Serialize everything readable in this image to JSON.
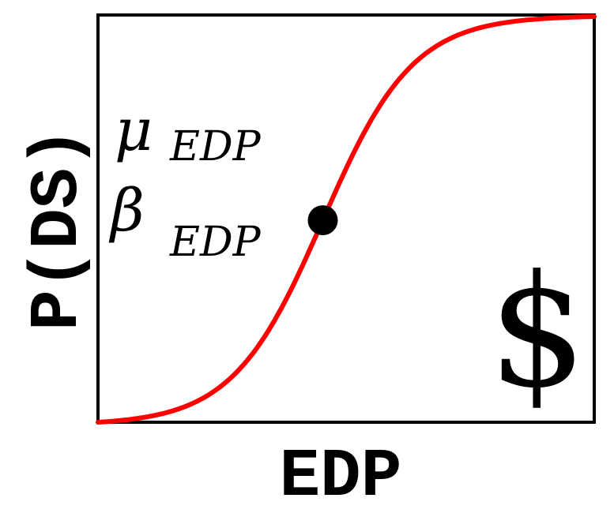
{
  "chart_data": {
    "type": "line",
    "title": "",
    "xlabel": "EDP",
    "ylabel": "P(DS)",
    "grid": false,
    "ylim": [
      0,
      1
    ],
    "series": [
      {
        "curve": "lognormal-cdf",
        "color": "#ff0000"
      }
    ],
    "marker": {
      "color": "#000000"
    }
  },
  "annotations": {
    "mu_symbol": "μ",
    "mu_subscript": "EDP",
    "beta_symbol": "β",
    "beta_subscript": "EDP",
    "currency_symbol": "$"
  },
  "colors": {
    "curve": "#ff0000",
    "frame": "#000000",
    "marker": "#000000",
    "text": "#000000"
  }
}
